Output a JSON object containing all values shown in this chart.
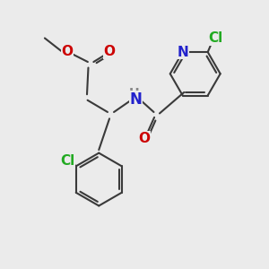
{
  "bg_color": "#ebebeb",
  "bond_color": "#3a3a3a",
  "bond_width": 1.5,
  "text_colors": {
    "O": "#cc0000",
    "N": "#2222cc",
    "Cl": "#22aa22",
    "H": "#888888",
    "C": "#3a3a3a"
  },
  "font_size": 11
}
